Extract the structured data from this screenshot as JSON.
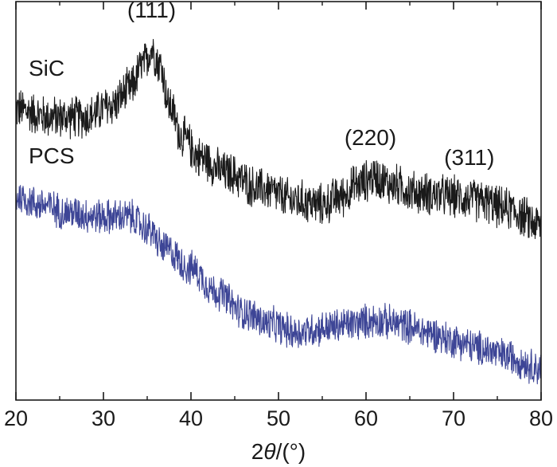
{
  "chart_data": {
    "type": "line",
    "xlabel_prefix": "2",
    "xlabel_symbol": "θ",
    "xlabel_suffix": "/(°)",
    "ylabel": "",
    "xlim": [
      20,
      80
    ],
    "x_ticks": [
      20,
      30,
      40,
      50,
      60,
      70,
      80
    ],
    "x_minor_ticks": [
      25,
      35,
      45,
      55,
      65,
      75
    ],
    "y_ticks_shown": false,
    "grid": false,
    "legend": "none",
    "series": [
      {
        "name": "SiC",
        "color": "#1a1a1a",
        "noise": 0.06,
        "points": [
          [
            20,
            0.73
          ],
          [
            24,
            0.71
          ],
          [
            28,
            0.71
          ],
          [
            31,
            0.74
          ],
          [
            33,
            0.78
          ],
          [
            34.5,
            0.84
          ],
          [
            35.5,
            0.88
          ],
          [
            36.5,
            0.84
          ],
          [
            37.5,
            0.74
          ],
          [
            39,
            0.66
          ],
          [
            41,
            0.61
          ],
          [
            44,
            0.57
          ],
          [
            48,
            0.53
          ],
          [
            52,
            0.5
          ],
          [
            55,
            0.49
          ],
          [
            57,
            0.51
          ],
          [
            59,
            0.54
          ],
          [
            61,
            0.56
          ],
          [
            63,
            0.54
          ],
          [
            66,
            0.52
          ],
          [
            70,
            0.51
          ],
          [
            73,
            0.5
          ],
          [
            76,
            0.48
          ],
          [
            80,
            0.44
          ]
        ]
      },
      {
        "name": "PCS",
        "color": "#3d4596",
        "noise": 0.05,
        "points": [
          [
            20,
            0.51
          ],
          [
            23,
            0.49
          ],
          [
            26,
            0.47
          ],
          [
            30,
            0.46
          ],
          [
            33,
            0.46
          ],
          [
            35,
            0.43
          ],
          [
            37,
            0.38
          ],
          [
            40,
            0.33
          ],
          [
            43,
            0.27
          ],
          [
            46,
            0.22
          ],
          [
            49,
            0.19
          ],
          [
            52,
            0.17
          ],
          [
            55,
            0.18
          ],
          [
            58,
            0.19
          ],
          [
            61,
            0.2
          ],
          [
            64,
            0.19
          ],
          [
            67,
            0.17
          ],
          [
            70,
            0.15
          ],
          [
            73,
            0.13
          ],
          [
            76,
            0.11
          ],
          [
            80,
            0.08
          ]
        ]
      }
    ],
    "annotations": [
      {
        "text": "(111)",
        "x": 35.5,
        "y": 0.96
      },
      {
        "text": "(220)",
        "x": 60.5,
        "y": 0.64
      },
      {
        "text": "(311)",
        "x": 71.8,
        "y": 0.59
      }
    ]
  }
}
